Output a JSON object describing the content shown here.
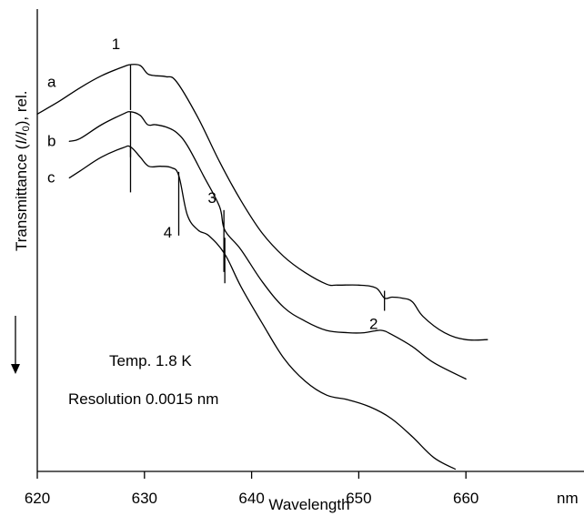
{
  "chart_data": {
    "type": "line",
    "xlabel": "Wavelength",
    "x_unit": "nm",
    "ylabel": "Transmittance (I/I₀), rel.",
    "xlim": [
      620,
      666
    ],
    "x_ticks": [
      620,
      630,
      640,
      650,
      660
    ],
    "annotations": [
      "Temp. 1.8 K",
      "Resolution 0.0015 nm"
    ],
    "series": [
      {
        "name": "a",
        "x": [
          620,
          622,
          624,
          626,
          628,
          628.7,
          629.6,
          630.3,
          631,
          632,
          633,
          635,
          637,
          639,
          641,
          643,
          645,
          647,
          648,
          650,
          651.6,
          652.4,
          653.1,
          654,
          655,
          656,
          658,
          660,
          662
        ],
        "y": [
          0.773,
          0.8,
          0.83,
          0.856,
          0.875,
          0.88,
          0.878,
          0.86,
          0.856,
          0.854,
          0.843,
          0.765,
          0.67,
          0.586,
          0.515,
          0.465,
          0.43,
          0.405,
          0.403,
          0.403,
          0.397,
          0.375,
          0.377,
          0.375,
          0.367,
          0.335,
          0.3,
          0.285,
          0.285
        ]
      },
      {
        "name": "b",
        "x": [
          623,
          624,
          626,
          628,
          628.7,
          629.6,
          630.3,
          631,
          632,
          633,
          634,
          635.5,
          637,
          637.5,
          639,
          641,
          643,
          645,
          647,
          649,
          650.5,
          651.5,
          652.2,
          653,
          655,
          657,
          660
        ],
        "y": [
          0.714,
          0.72,
          0.75,
          0.773,
          0.778,
          0.77,
          0.75,
          0.75,
          0.745,
          0.733,
          0.705,
          0.64,
          0.573,
          0.522,
          0.48,
          0.41,
          0.355,
          0.325,
          0.305,
          0.3,
          0.3,
          0.304,
          0.305,
          0.297,
          0.27,
          0.235,
          0.2
        ]
      },
      {
        "name": "c",
        "x": [
          623,
          624,
          626,
          628,
          628.7,
          629.6,
          630.4,
          631.5,
          632.5,
          633.2,
          634,
          635,
          636,
          637.5,
          639,
          641,
          643,
          645,
          647,
          649,
          651,
          653,
          655,
          657,
          659
        ],
        "y": [
          0.635,
          0.65,
          0.68,
          0.7,
          0.702,
          0.68,
          0.66,
          0.66,
          0.657,
          0.64,
          0.555,
          0.522,
          0.51,
          0.47,
          0.4,
          0.32,
          0.245,
          0.195,
          0.165,
          0.155,
          0.14,
          0.115,
          0.075,
          0.03,
          0.005
        ]
      }
    ],
    "markers": [
      {
        "label": "1",
        "x": 628.7
      },
      {
        "label": "2",
        "x": 652.4
      },
      {
        "label": "3",
        "x": 637.5
      },
      {
        "label": "4",
        "x": 633.2
      }
    ]
  }
}
